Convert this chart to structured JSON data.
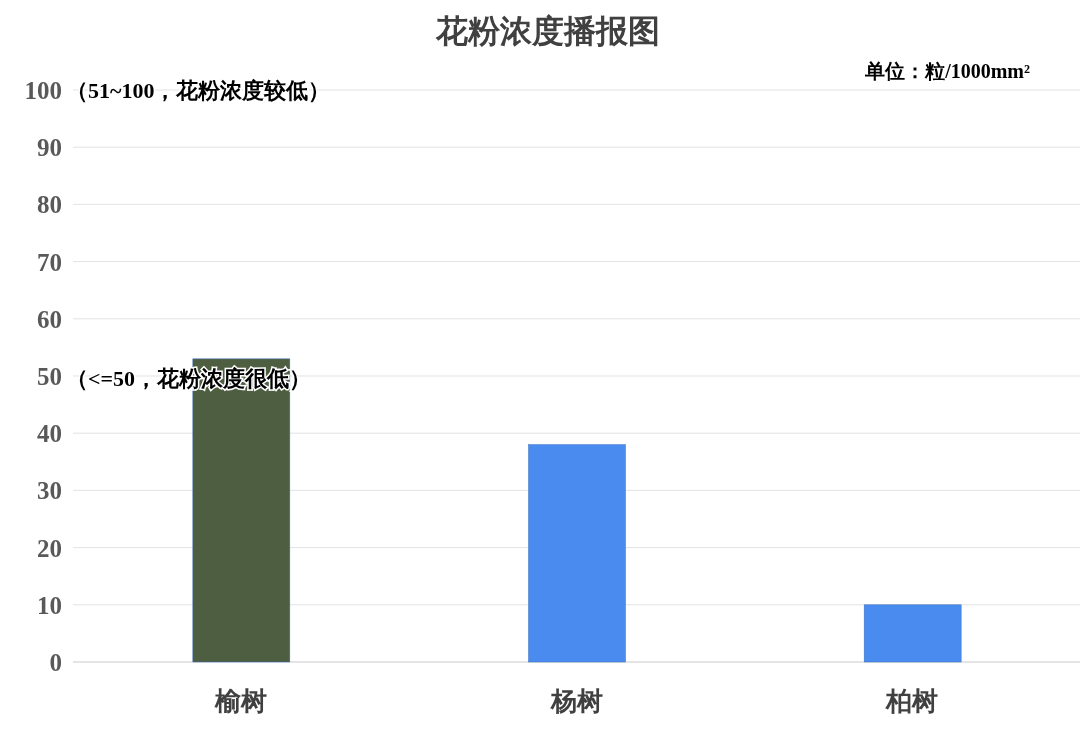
{
  "chart_data": {
    "type": "bar",
    "title": "花粉浓度播报图",
    "subtitle": "单位：粒/1000mm²",
    "categories": [
      "榆树",
      "杨树",
      "柏树"
    ],
    "values": [
      53,
      38,
      10
    ],
    "colors": [
      "#4e5e40",
      "#4a8bf0",
      "#4a8bf0"
    ],
    "ylim": [
      0,
      100
    ],
    "yticks": [
      0,
      10,
      20,
      30,
      40,
      50,
      60,
      70,
      80,
      90,
      100
    ],
    "grid": "y",
    "annotations": [
      "（51~100，花粉浓度较低）",
      "（<=50，花粉浓度很低）"
    ]
  }
}
